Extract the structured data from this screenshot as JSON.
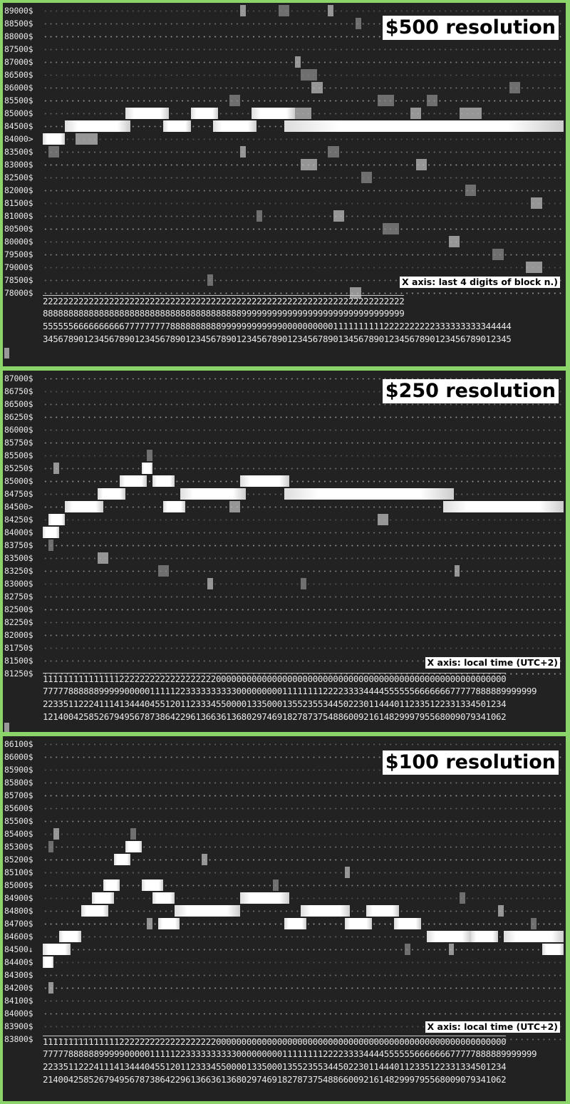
{
  "panels": [
    {
      "id": "p1",
      "title": "$500 resolution",
      "note": "X axis: last 4 digits of block n.)",
      "current_price": "84000",
      "y_labels": [
        "89000$",
        "88500$",
        "88000$",
        "87500$",
        "87000$",
        "86500$",
        "86000$",
        "85500$",
        "85000$",
        "84500$",
        "84000>",
        "83500$",
        "83000$",
        "82500$",
        "82000$",
        "81500$",
        "81000$",
        "80500$",
        "80000$",
        "79500$",
        "79000$",
        "78500$",
        "78000$"
      ],
      "x_rows": [
        "22222222222222222222222222222222222222222222222222222222222222222222222",
        "88888888888888888888888888888888888888899999999999999999999999999999999",
        "55555566666666667777777778888888888999999999999000000000011111111112222222222333333333344444",
        "34567890123456789012345678901234567890123456789012345678901345678901234567890123456789012345"
      ]
    },
    {
      "id": "p2",
      "title": "$250 resolution",
      "note": "X axis: local time (UTC+2)",
      "current_price": "84500",
      "y_labels": [
        "87000$",
        "86750$",
        "86500$",
        "86250$",
        "86000$",
        "85750$",
        "85500$",
        "85250$",
        "85000$",
        "84750$",
        "84500>",
        "84250$",
        "84000$",
        "83750$",
        "83500$",
        "83250$",
        "83000$",
        "82750$",
        "82500$",
        "82250$",
        "82000$",
        "81750$",
        "81500$",
        "81250$"
      ],
      "x_rows": [
        "1111111111111112222222222222222222000000000000000000000000000000000000000000000000000000000",
        "7777788888899999000001111122333333333300000000011111111222233334444555555666666677777888889999999",
        "2233511222411141344404551201123334550000133500013552355344502230114440112335122331334501234",
        "1214004258526794956787386422961366361368029746918278737548860092161482999795568009079341062"
      ]
    },
    {
      "id": "p3",
      "title": "$100 resolution",
      "note": "X axis: local time (UTC+2)",
      "current_price": "84500",
      "y_labels": [
        "86100$",
        "86000$",
        "85900$",
        "85800$",
        "85700$",
        "85600$",
        "85500$",
        "85400$",
        "85300$",
        "85200$",
        "85100$",
        "85000$",
        "84900$",
        "84800$",
        "84700$",
        "84600$",
        "84500↓",
        "84400$",
        "84300$",
        "84200$",
        "84100$",
        "84000$",
        "83900$",
        "83800$"
      ],
      "x_rows": [
        "1111111111111112222222222222222222000000000000000000000000000000000000000000000000000000000",
        "7777788888899999000001111122333333333300000000011111111222233334444555555666666677777888889999999",
        "2233511222411141344404551201123334550000133500013552355344502230114440112335122331334501234",
        "2140042585267949567873864229613663613680297469182787375488660092161482999795568009079341062"
      ]
    }
  ],
  "colors": {
    "background": "#222222",
    "frame": "#8bd46a",
    "price_line": "#ffffff",
    "dot": "#9a9a9a",
    "heat_mid": "#bdbdbd",
    "heat_low": "#8a8a8a"
  }
}
